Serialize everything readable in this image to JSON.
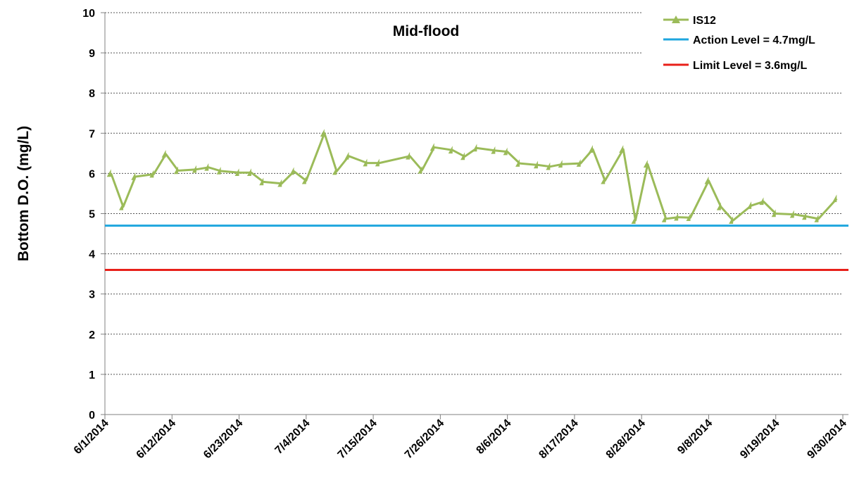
{
  "chart_data": {
    "type": "line",
    "title": "Mid-flood",
    "xlabel": "",
    "ylabel": "Bottom D.O. (mg/L)",
    "xlim": [
      "2014-06-01",
      "2014-09-30"
    ],
    "ylim": [
      0,
      10
    ],
    "y_ticks": [
      "0",
      "1",
      "2",
      "3",
      "4",
      "5",
      "6",
      "7",
      "8",
      "9",
      "10"
    ],
    "x_tick_labels": [
      "6/1/2014",
      "6/12/2014",
      "6/23/2014",
      "7/4/2014",
      "7/15/2014",
      "7/26/2014",
      "8/6/2014",
      "8/17/2014",
      "8/28/2014",
      "9/8/2014",
      "9/19/2014",
      "9/30/2014"
    ],
    "x_ticks": [
      "2014-06-01",
      "2014-06-12",
      "2014-06-23",
      "2014-07-04",
      "2014-07-15",
      "2014-07-26",
      "2014-08-06",
      "2014-08-17",
      "2014-08-28",
      "2014-09-08",
      "2014-09-19",
      "2014-09-30"
    ],
    "grid": "horizontal-dashed",
    "legend_position": "top-right",
    "series": [
      {
        "name": "IS12",
        "color": "#9BBB59",
        "marker": "triangle",
        "points": [
          [
            "2014-06-02",
            6.0
          ],
          [
            "2014-06-04",
            5.17
          ],
          [
            "2014-06-06",
            5.92
          ],
          [
            "2014-06-09",
            5.98
          ],
          [
            "2014-06-11",
            6.48
          ],
          [
            "2014-06-13",
            6.07
          ],
          [
            "2014-06-16",
            6.1
          ],
          [
            "2014-06-18",
            6.15
          ],
          [
            "2014-06-20",
            6.06
          ],
          [
            "2014-06-23",
            6.02
          ],
          [
            "2014-06-25",
            6.02
          ],
          [
            "2014-06-27",
            5.79
          ],
          [
            "2014-06-30",
            5.75
          ],
          [
            "2014-07-02",
            6.05
          ],
          [
            "2014-07-04",
            5.82
          ],
          [
            "2014-07-07",
            7.0
          ],
          [
            "2014-07-09",
            6.05
          ],
          [
            "2014-07-11",
            6.43
          ],
          [
            "2014-07-14",
            6.26
          ],
          [
            "2014-07-16",
            6.26
          ],
          [
            "2014-07-21",
            6.43
          ],
          [
            "2014-07-23",
            6.08
          ],
          [
            "2014-07-25",
            6.65
          ],
          [
            "2014-07-28",
            6.58
          ],
          [
            "2014-07-30",
            6.42
          ],
          [
            "2014-08-01",
            6.63
          ],
          [
            "2014-08-04",
            6.57
          ],
          [
            "2014-08-06",
            6.54
          ],
          [
            "2014-08-08",
            6.25
          ],
          [
            "2014-08-11",
            6.21
          ],
          [
            "2014-08-13",
            6.17
          ],
          [
            "2014-08-15",
            6.23
          ],
          [
            "2014-08-18",
            6.25
          ],
          [
            "2014-08-20",
            6.6
          ],
          [
            "2014-08-22",
            5.82
          ],
          [
            "2014-08-25",
            6.6
          ],
          [
            "2014-08-27",
            4.83
          ],
          [
            "2014-08-29",
            6.23
          ],
          [
            "2014-09-01",
            4.87
          ],
          [
            "2014-09-03",
            4.91
          ],
          [
            "2014-09-05",
            4.9
          ],
          [
            "2014-09-08",
            5.82
          ],
          [
            "2014-09-10",
            5.17
          ],
          [
            "2014-09-12",
            4.83
          ],
          [
            "2014-09-15",
            5.2
          ],
          [
            "2014-09-17",
            5.3
          ],
          [
            "2014-09-19",
            5.0
          ],
          [
            "2014-09-22",
            4.98
          ],
          [
            "2014-09-24",
            4.93
          ],
          [
            "2014-09-26",
            4.87
          ],
          [
            "2014-09-29",
            5.37
          ]
        ]
      },
      {
        "name": "Action Level = 4.7mg/L",
        "color": "#1EA6DE",
        "constant": 4.7
      },
      {
        "name": "Limit Level = 3.6mg/L",
        "color": "#E8201A",
        "constant": 3.6
      }
    ]
  }
}
